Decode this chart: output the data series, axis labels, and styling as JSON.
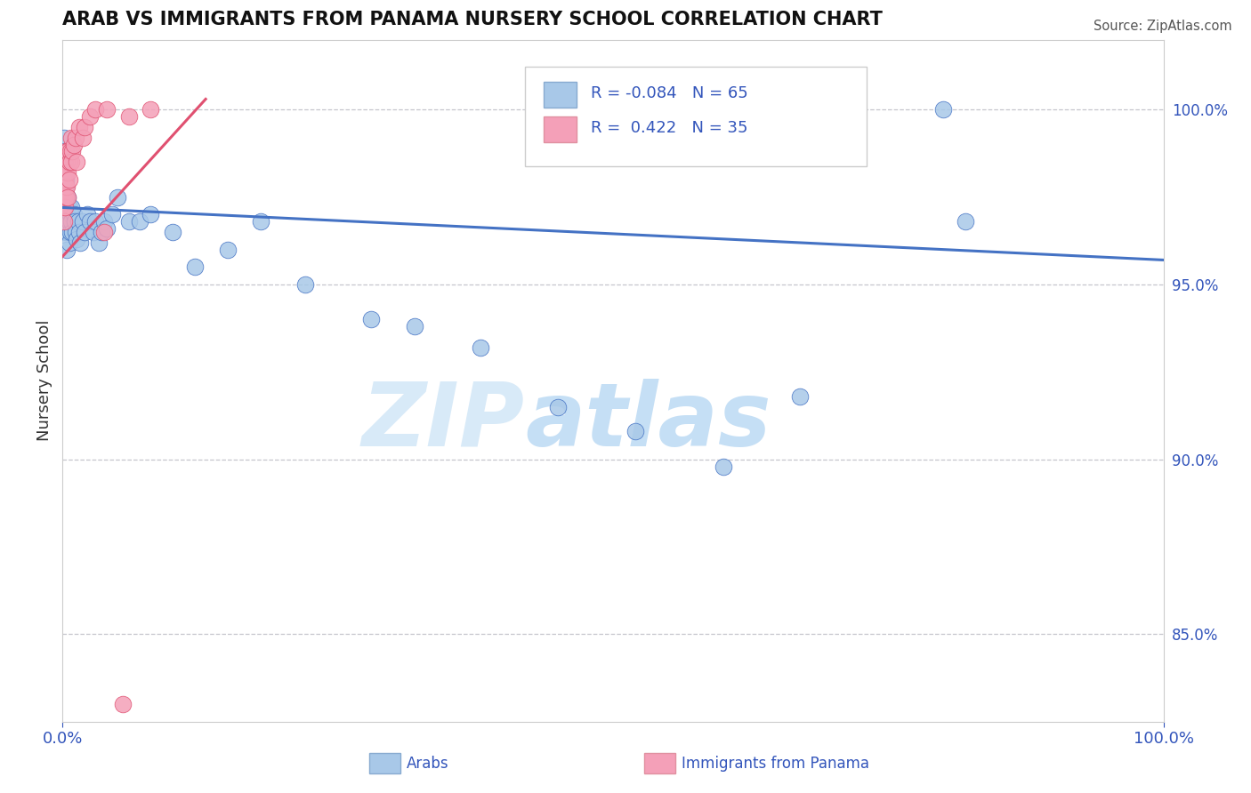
{
  "title": "ARAB VS IMMIGRANTS FROM PANAMA NURSERY SCHOOL CORRELATION CHART",
  "source": "Source: ZipAtlas.com",
  "ylabel": "Nursery School",
  "ytick_labels": [
    "85.0%",
    "90.0%",
    "95.0%",
    "100.0%"
  ],
  "ytick_values": [
    0.85,
    0.9,
    0.95,
    1.0
  ],
  "xlim": [
    0.0,
    1.0
  ],
  "ylim": [
    0.825,
    1.02
  ],
  "legend_r_arab": "-0.084",
  "legend_n_arab": "65",
  "legend_r_panama": "0.422",
  "legend_n_panama": "35",
  "color_arab": "#a8c8e8",
  "color_panama": "#f4a0b8",
  "color_trendline_arab": "#4472c4",
  "color_trendline_panama": "#e05070",
  "color_dashed": "#c0c0c8",
  "watermark_zip": "ZIP",
  "watermark_atlas": "atlas",
  "arab_trendline_x": [
    0.0,
    1.0
  ],
  "arab_trendline_y": [
    0.972,
    0.957
  ],
  "panama_trendline_x": [
    0.0,
    0.13
  ],
  "panama_trendline_y": [
    0.958,
    1.003
  ],
  "arab_x": [
    0.001,
    0.001,
    0.001,
    0.001,
    0.001,
    0.002,
    0.002,
    0.002,
    0.002,
    0.002,
    0.003,
    0.003,
    0.003,
    0.003,
    0.004,
    0.004,
    0.004,
    0.004,
    0.005,
    0.005,
    0.005,
    0.006,
    0.006,
    0.006,
    0.007,
    0.007,
    0.008,
    0.008,
    0.009,
    0.01,
    0.011,
    0.012,
    0.013,
    0.014,
    0.015,
    0.016,
    0.018,
    0.02,
    0.022,
    0.025,
    0.028,
    0.03,
    0.033,
    0.035,
    0.038,
    0.04,
    0.045,
    0.05,
    0.06,
    0.07,
    0.08,
    0.1,
    0.12,
    0.15,
    0.18,
    0.22,
    0.28,
    0.32,
    0.38,
    0.45,
    0.52,
    0.6,
    0.67,
    0.8,
    0.82
  ],
  "arab_y": [
    0.98,
    0.975,
    0.97,
    0.985,
    0.992,
    0.978,
    0.982,
    0.968,
    0.975,
    0.988,
    0.972,
    0.98,
    0.965,
    0.978,
    0.97,
    0.975,
    0.96,
    0.968,
    0.97,
    0.965,
    0.975,
    0.968,
    0.962,
    0.972,
    0.965,
    0.97,
    0.968,
    0.972,
    0.965,
    0.97,
    0.968,
    0.965,
    0.963,
    0.968,
    0.965,
    0.962,
    0.968,
    0.965,
    0.97,
    0.968,
    0.965,
    0.968,
    0.962,
    0.965,
    0.968,
    0.966,
    0.97,
    0.975,
    0.968,
    0.968,
    0.97,
    0.965,
    0.955,
    0.96,
    0.968,
    0.95,
    0.94,
    0.938,
    0.932,
    0.915,
    0.908,
    0.898,
    0.918,
    1.0,
    0.968
  ],
  "panama_x": [
    0.001,
    0.001,
    0.001,
    0.001,
    0.002,
    0.002,
    0.002,
    0.002,
    0.003,
    0.003,
    0.003,
    0.004,
    0.004,
    0.005,
    0.005,
    0.005,
    0.006,
    0.006,
    0.007,
    0.008,
    0.008,
    0.009,
    0.01,
    0.012,
    0.013,
    0.015,
    0.018,
    0.02,
    0.025,
    0.03,
    0.04,
    0.06,
    0.08,
    0.038,
    0.055
  ],
  "panama_y": [
    0.972,
    0.98,
    0.968,
    0.975,
    0.978,
    0.985,
    0.972,
    0.98,
    0.982,
    0.975,
    0.988,
    0.978,
    0.985,
    0.982,
    0.975,
    0.988,
    0.98,
    0.985,
    0.988,
    0.985,
    0.992,
    0.988,
    0.99,
    0.992,
    0.985,
    0.995,
    0.992,
    0.995,
    0.998,
    1.0,
    1.0,
    0.998,
    1.0,
    0.965,
    0.83
  ]
}
